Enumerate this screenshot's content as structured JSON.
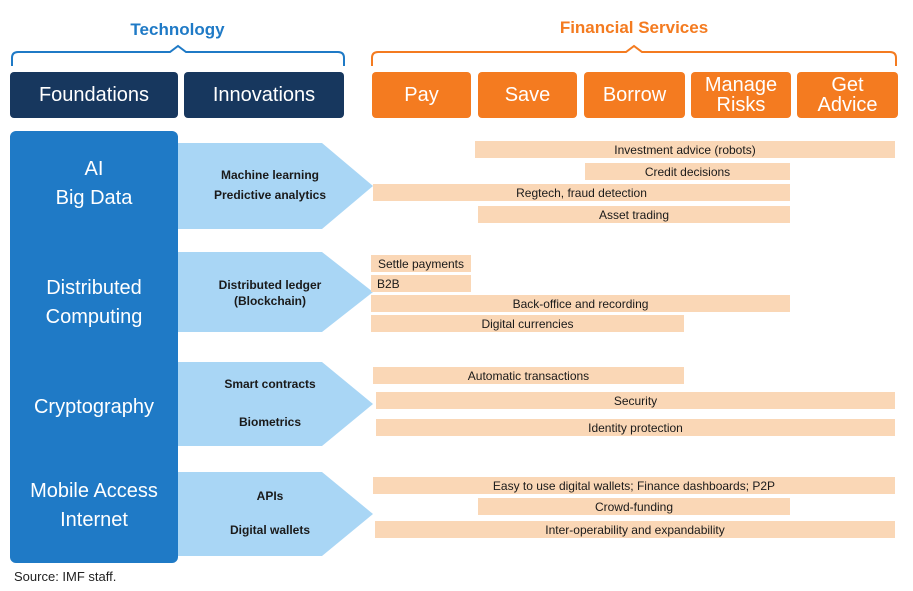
{
  "technology_title": "Technology",
  "financial_title": "Financial Services",
  "columns": {
    "foundations": "Foundations",
    "innovations": "Innovations"
  },
  "services": [
    "Pay",
    "Save",
    "Borrow",
    "Manage\nRisks",
    "Get\nAdvice"
  ],
  "rows": [
    {
      "foundation": [
        "AI",
        "Big Data"
      ],
      "innovations": [
        "Machine learning",
        "Predictive analytics"
      ],
      "bars": [
        "Investment advice (robots)",
        "Credit decisions",
        "Regtech, fraud detection",
        "Asset trading"
      ]
    },
    {
      "foundation": [
        "Distributed",
        "Computing"
      ],
      "innovations": [
        "Distributed ledger",
        "(Blockchain)"
      ],
      "bars": [
        "Settle payments",
        "B2B",
        "Back-office and recording",
        "Digital currencies"
      ]
    },
    {
      "foundation": [
        "Cryptography"
      ],
      "innovations": [
        "Smart contracts",
        "Biometrics"
      ],
      "bars": [
        "Automatic transactions",
        "Security",
        "Identity protection"
      ]
    },
    {
      "foundation": [
        "Mobile Access",
        "Internet"
      ],
      "innovations": [
        "APIs",
        "Digital wallets"
      ],
      "bars": [
        "Easy to use digital wallets; Finance dashboards; P2P",
        "Crowd-funding",
        "Inter-operability and expandability"
      ]
    }
  ],
  "source": "Source: IMF staff.",
  "colors": {
    "blue": "#1f7ac6",
    "navy": "#17375e",
    "orange": "#f47b20",
    "light_blue": "#a9d6f5",
    "peach": "#fad7b6"
  }
}
